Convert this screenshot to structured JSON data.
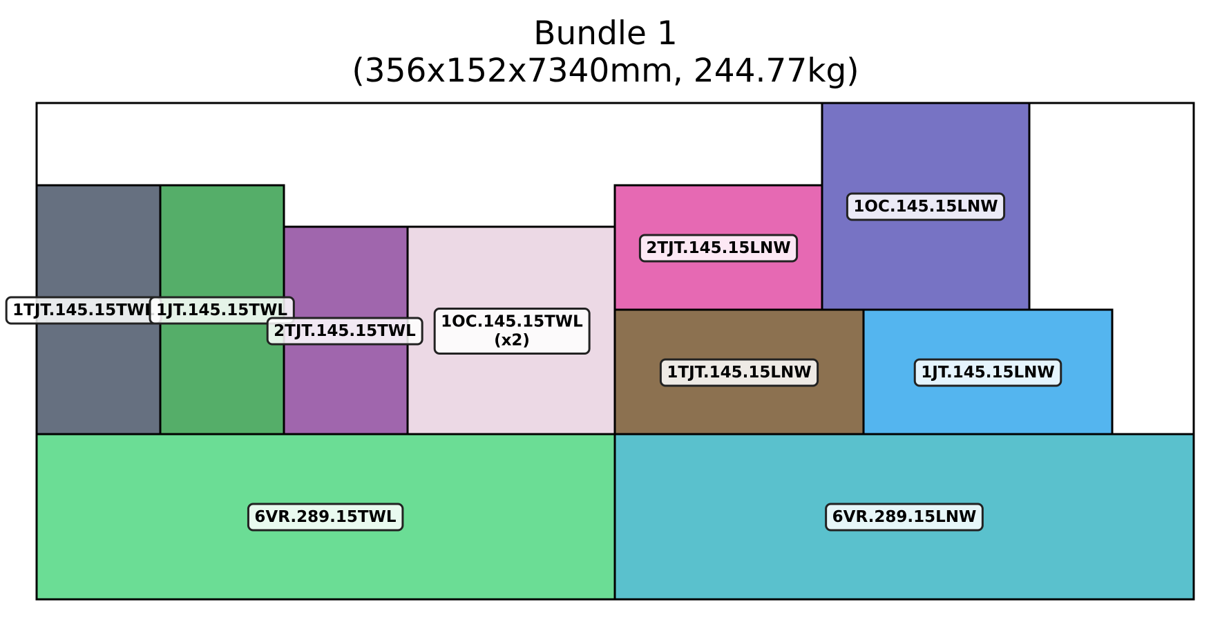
{
  "header": {
    "title_line1": "Bundle 1",
    "title_line2": "(356x152x7340mm, 244.77kg)"
  },
  "pieces": [
    {
      "id": "1TJT-left",
      "label": "1TJT.145.15TWL",
      "color": "#667080"
    },
    {
      "id": "1JT-left",
      "label": "1JT.145.15TWL",
      "color": "#55ae69"
    },
    {
      "id": "2TJT-left",
      "label": "2TJT.145.15TWL",
      "color": "#a066ad"
    },
    {
      "id": "1OC-left",
      "label": "1OC.145.15TWL\n(x2)",
      "color": "#ecd9e5"
    },
    {
      "id": "2TJT-right",
      "label": "2TJT.145.15LNW",
      "color": "#e669b3"
    },
    {
      "id": "1OC-right",
      "label": "1OC.145.15LNW",
      "color": "#7773c4"
    },
    {
      "id": "1TJT-right",
      "label": "1TJT.145.15LNW",
      "color": "#8c7150"
    },
    {
      "id": "1JT-right",
      "label": "1JT.145.15LNW",
      "color": "#54b5ef"
    },
    {
      "id": "6VR-left",
      "label": "6VR.289.15TWL",
      "color": "#6bdd95"
    },
    {
      "id": "6VR-right",
      "label": "6VR.289.15LNW",
      "color": "#5ac1cd"
    }
  ]
}
